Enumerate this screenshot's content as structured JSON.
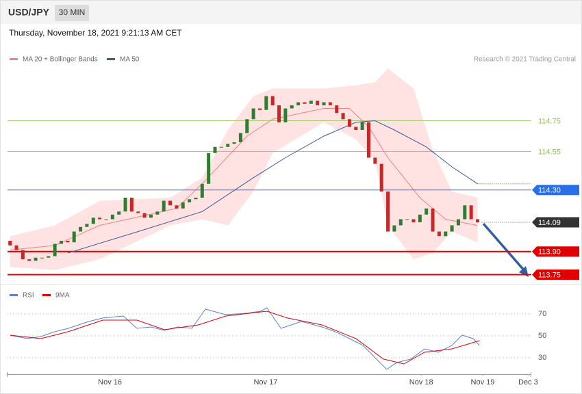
{
  "chart_data": {
    "type": "candlestick",
    "title": "USD/JPY",
    "subtitle": "30 MIN",
    "timestamp": "Thursday, November 18, 2021 9:21:13 AM CET",
    "credit": "Research © 2021 Trading Central",
    "up_color": "#2e7d32",
    "down_color": "#c62828",
    "xlim": [
      -0.5,
      81.5
    ],
    "ylim": [
      113.69,
      115.09
    ],
    "xticks": [
      {
        "value": 15.6,
        "label": "Nov 16"
      },
      {
        "value": 39.9,
        "label": "Nov 17"
      },
      {
        "value": 64.2,
        "label": "Nov 18"
      },
      {
        "value": 73.8,
        "label": "Nov 19"
      },
      {
        "value": 80.9,
        "label": "Dec 3"
      }
    ],
    "open": [
      113.97,
      113.94,
      113.91,
      113.85,
      113.84,
      113.86,
      113.86,
      113.87,
      113.95,
      113.97,
      113.96,
      114.03,
      114.06,
      114.08,
      114.12,
      114.11,
      114.11,
      114.14,
      114.16,
      114.25,
      114.16,
      114.15,
      114.12,
      114.14,
      114.16,
      114.23,
      114.2,
      114.18,
      114.22,
      114.24,
      114.25,
      114.34,
      114.54,
      114.58,
      114.58,
      114.6,
      114.61,
      114.67,
      114.76,
      114.83,
      114.82,
      114.91,
      114.85,
      114.74,
      114.83,
      114.85,
      114.87,
      114.86,
      114.88,
      114.85,
      114.87,
      114.85,
      114.8,
      114.76,
      114.71,
      114.69,
      114.74,
      114.51,
      114.47,
      114.29,
      114.03,
      114.07,
      114.11,
      114.11,
      114.09,
      114.14,
      114.18,
      114.03,
      114.0,
      114.03,
      114.07,
      114.11,
      114.2,
      114.11
    ],
    "close": [
      113.94,
      113.91,
      113.85,
      113.84,
      113.86,
      113.86,
      113.87,
      113.95,
      113.97,
      113.96,
      114.03,
      114.06,
      114.08,
      114.12,
      114.11,
      114.11,
      114.14,
      114.16,
      114.25,
      114.16,
      114.15,
      114.12,
      114.14,
      114.16,
      114.23,
      114.2,
      114.18,
      114.22,
      114.24,
      114.25,
      114.34,
      114.54,
      114.58,
      114.58,
      114.6,
      114.61,
      114.67,
      114.76,
      114.83,
      114.82,
      114.91,
      114.85,
      114.74,
      114.83,
      114.85,
      114.87,
      114.86,
      114.88,
      114.85,
      114.87,
      114.85,
      114.8,
      114.76,
      114.71,
      114.69,
      114.74,
      114.51,
      114.47,
      114.29,
      114.03,
      114.07,
      114.11,
      114.11,
      114.09,
      114.14,
      114.18,
      114.03,
      114.0,
      114.03,
      114.07,
      114.11,
      114.2,
      114.11,
      114.09
    ],
    "bands": {
      "name": "MA 20 + Bollinger Bands",
      "color": "#f08080",
      "band_color": "#ffd6d6",
      "x": [
        0,
        7,
        14,
        25,
        30,
        34,
        38,
        41,
        49,
        54,
        57,
        59,
        63,
        66,
        69,
        73
      ],
      "upper": [
        114.0,
        114.07,
        114.23,
        114.25,
        114.38,
        114.69,
        114.91,
        114.96,
        114.96,
        114.98,
        115.0,
        115.09,
        114.96,
        114.56,
        114.29,
        114.25
      ],
      "lower": [
        113.8,
        113.78,
        113.85,
        114.07,
        114.11,
        114.07,
        114.29,
        114.54,
        114.74,
        114.63,
        114.49,
        114.07,
        113.85,
        113.89,
        114.03,
        113.96
      ],
      "middle_x": [
        0,
        7,
        14,
        26,
        30,
        37,
        41,
        49,
        53,
        56,
        59,
        64,
        68,
        73
      ],
      "middle": [
        113.91,
        113.94,
        114.07,
        114.18,
        114.34,
        114.65,
        114.76,
        114.83,
        114.83,
        114.71,
        114.51,
        114.25,
        114.11,
        114.07
      ]
    },
    "lines": [
      {
        "name": "MA 50",
        "color": "#3b5998",
        "x": [
          9,
          20,
          30,
          38,
          43,
          49,
          54,
          57,
          60,
          65,
          69,
          73
        ],
        "values": [
          113.89,
          114.03,
          114.16,
          114.38,
          114.51,
          114.65,
          114.74,
          114.75,
          114.69,
          114.58,
          114.45,
          114.34
        ]
      }
    ],
    "levels": [
      114.75,
      114.55,
      {
        "value": 114.3,
        "label": "114.30"
      },
      114.09,
      {
        "value": 113.9,
        "label": "113.90"
      },
      113.75
    ],
    "level_colors": [
      "#8bc34a",
      "#8bc34a",
      "#2a6ee8",
      "#333333",
      "#e00000",
      "#e00000"
    ],
    "level_boxed": [
      false,
      false,
      true,
      true,
      true,
      true
    ],
    "level_dotted": [
      false,
      false,
      false,
      true,
      false,
      false
    ],
    "rsi": {
      "ylim": [
        16,
        82
      ],
      "yticks": [
        30,
        50,
        70
      ],
      "series": [
        {
          "name": "RSI",
          "color": "#5b7fd6",
          "x": [
            0.0,
            2.7,
            4.8,
            7.0,
            9.1,
            12.3,
            14.5,
            17.7,
            19.8,
            22.0,
            24.1,
            26.2,
            28.4,
            30.5,
            33.7,
            36.9,
            39.1,
            40.1,
            42.3,
            45.5,
            48.7,
            50.8,
            53.0,
            55.1,
            57.2,
            58.8,
            60.4,
            62.6,
            64.7,
            66.9,
            69.0,
            70.6,
            72.3,
            73.3
          ],
          "values": [
            50.6,
            47.5,
            49.4,
            53.8,
            56.9,
            63.1,
            66.3,
            68.1,
            56.9,
            58.1,
            55,
            58.1,
            56.9,
            74.4,
            69.4,
            70.6,
            72.5,
            75.6,
            56.9,
            63.1,
            58.1,
            53.8,
            47.5,
            41.3,
            28.8,
            19.4,
            25.6,
            28.8,
            38.1,
            35,
            41.3,
            50.6,
            47.5,
            41.3
          ]
        },
        {
          "name": "9MA",
          "color": "#e00000",
          "x": [
            0.0,
            4.8,
            9.1,
            14.5,
            19.8,
            24.1,
            29.4,
            33.7,
            40.1,
            43.3,
            48.7,
            54.0,
            58.3,
            61.5,
            64.7,
            69.0,
            73.3
          ],
          "values": [
            50.6,
            47.5,
            53.8,
            64.4,
            64.4,
            55.6,
            60,
            68.1,
            72.5,
            66.3,
            60,
            47.5,
            28.8,
            24.4,
            35,
            38.1,
            45.6
          ]
        }
      ]
    }
  }
}
